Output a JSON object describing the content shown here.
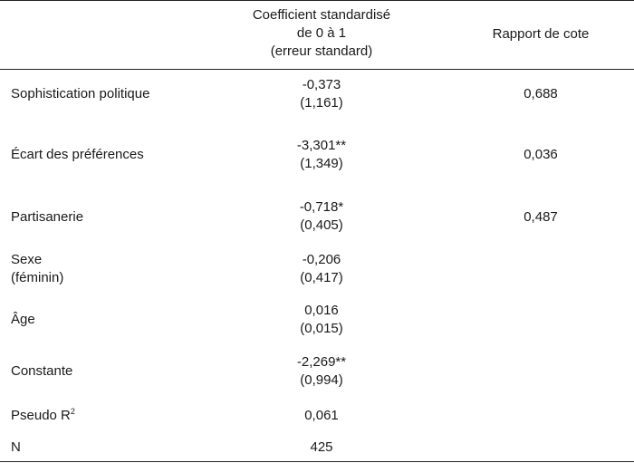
{
  "header": {
    "coef_line1": "Coefficient standardisé",
    "coef_line2": "de 0 à 1",
    "coef_line3": "(erreur standard)",
    "ratio": "Rapport de cote"
  },
  "rows": [
    {
      "label": "Sophistication politique",
      "coef": "-0,373",
      "se": "(1,161)",
      "ratio": "0,688"
    },
    {
      "label": "Écart des préférences",
      "coef": "-3,301**",
      "se": "(1,349)",
      "ratio": "0,036"
    },
    {
      "label": "Partisanerie",
      "coef": "-0,718*",
      "se": "(0,405)",
      "ratio": "0,487"
    },
    {
      "label_line1": "Sexe",
      "label_line2": "(féminin)",
      "coef": "-0,206",
      "se": "(0,417)"
    },
    {
      "label": "Âge",
      "coef": "0,016",
      "se": "(0,015)"
    },
    {
      "label": "Constante",
      "coef": "-2,269**",
      "se": "(0,994)"
    },
    {
      "label": "Pseudo R",
      "label_sup": "2",
      "value": "0,061"
    },
    {
      "label": "N",
      "value": "425"
    }
  ]
}
